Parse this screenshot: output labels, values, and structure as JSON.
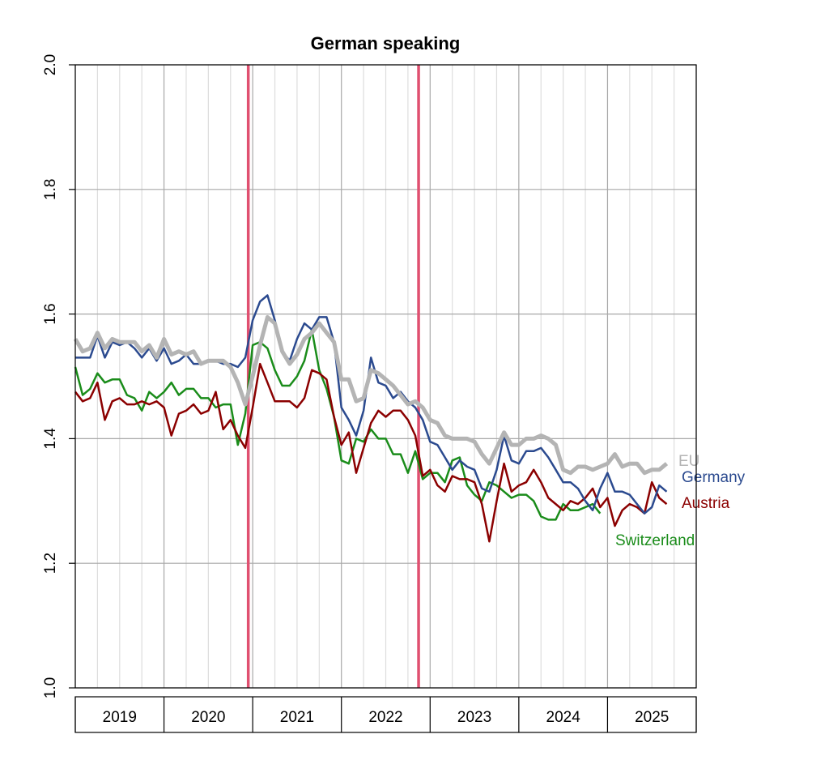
{
  "chart_data": {
    "type": "line",
    "title": "German speaking",
    "x": [
      2019,
      2019.083,
      2019.167,
      2019.25,
      2019.333,
      2019.417,
      2019.5,
      2019.583,
      2019.667,
      2019.75,
      2019.833,
      2019.917,
      2020,
      2020.083,
      2020.167,
      2020.25,
      2020.333,
      2020.417,
      2020.5,
      2020.583,
      2020.667,
      2020.75,
      2020.833,
      2020.917,
      2021,
      2021.083,
      2021.167,
      2021.25,
      2021.333,
      2021.417,
      2021.5,
      2021.583,
      2021.667,
      2021.75,
      2021.833,
      2021.917,
      2022,
      2022.083,
      2022.167,
      2022.25,
      2022.333,
      2022.417,
      2022.5,
      2022.583,
      2022.667,
      2022.75,
      2022.833,
      2022.917,
      2023,
      2023.083,
      2023.167,
      2023.25,
      2023.333,
      2023.417,
      2023.5,
      2023.583,
      2023.667,
      2023.75,
      2023.833,
      2023.917,
      2024,
      2024.083,
      2024.167,
      2024.25,
      2024.333,
      2024.417,
      2024.5,
      2024.583,
      2024.667,
      2024.75,
      2024.833,
      2024.917,
      2025,
      2025.083,
      2025.167,
      2025.25,
      2025.333,
      2025.417,
      2025.5,
      2025.583,
      2025.667
    ],
    "series": [
      {
        "name": "Switzerland",
        "color": "#1a8c1a",
        "width": 2.5,
        "values": [
          1.515,
          1.47,
          1.48,
          1.505,
          1.49,
          1.495,
          1.495,
          1.47,
          1.465,
          1.445,
          1.475,
          1.465,
          1.475,
          1.49,
          1.47,
          1.48,
          1.48,
          1.465,
          1.465,
          1.45,
          1.455,
          1.455,
          1.39,
          1.44,
          1.55,
          1.555,
          1.545,
          1.51,
          1.485,
          1.485,
          1.5,
          1.525,
          1.575,
          1.51,
          1.48,
          1.435,
          1.365,
          1.36,
          1.4,
          1.395,
          1.415,
          1.4,
          1.4,
          1.375,
          1.375,
          1.345,
          1.38,
          1.335,
          1.345,
          1.345,
          1.33,
          1.365,
          1.37,
          1.325,
          1.31,
          1.3,
          1.33,
          1.325,
          1.315,
          1.305,
          1.31,
          1.31,
          1.3,
          1.275,
          1.27,
          1.27,
          1.295,
          1.285,
          1.285,
          1.29,
          1.295,
          1.28,
          null,
          null,
          null,
          null,
          null,
          null,
          null,
          null,
          null
        ]
      },
      {
        "name": "Austria",
        "color": "#8b0000",
        "width": 2.5,
        "values": [
          1.475,
          1.46,
          1.465,
          1.49,
          1.43,
          1.46,
          1.465,
          1.455,
          1.455,
          1.46,
          1.455,
          1.46,
          1.45,
          1.405,
          1.44,
          1.445,
          1.455,
          1.44,
          1.445,
          1.475,
          1.415,
          1.43,
          1.405,
          1.385,
          1.45,
          1.52,
          1.49,
          1.46,
          1.46,
          1.46,
          1.45,
          1.465,
          1.51,
          1.505,
          1.495,
          1.435,
          1.39,
          1.41,
          1.345,
          1.385,
          1.425,
          1.445,
          1.435,
          1.445,
          1.445,
          1.43,
          1.405,
          1.34,
          1.35,
          1.325,
          1.315,
          1.34,
          1.335,
          1.335,
          1.33,
          1.295,
          1.235,
          1.3,
          1.36,
          1.315,
          1.325,
          1.33,
          1.35,
          1.33,
          1.305,
          1.295,
          1.285,
          1.3,
          1.295,
          1.305,
          1.32,
          1.29,
          1.305,
          1.26,
          1.285,
          1.295,
          1.29,
          1.28,
          1.33,
          1.305,
          1.295
        ]
      },
      {
        "name": "Germany",
        "color": "#2b4a8f",
        "width": 2.5,
        "values": [
          1.53,
          1.53,
          1.53,
          1.565,
          1.53,
          1.555,
          1.55,
          1.555,
          1.545,
          1.53,
          1.545,
          1.525,
          1.545,
          1.52,
          1.525,
          1.535,
          1.52,
          1.52,
          1.525,
          1.525,
          1.52,
          1.52,
          1.515,
          1.53,
          1.59,
          1.62,
          1.63,
          1.59,
          1.54,
          1.525,
          1.56,
          1.585,
          1.575,
          1.595,
          1.595,
          1.555,
          1.45,
          1.43,
          1.405,
          1.445,
          1.53,
          1.49,
          1.485,
          1.465,
          1.475,
          1.46,
          1.45,
          1.43,
          1.395,
          1.39,
          1.37,
          1.35,
          1.365,
          1.355,
          1.35,
          1.32,
          1.315,
          1.35,
          1.405,
          1.365,
          1.36,
          1.38,
          1.38,
          1.385,
          1.37,
          1.35,
          1.33,
          1.33,
          1.32,
          1.3,
          1.285,
          1.32,
          1.345,
          1.315,
          1.315,
          1.31,
          1.295,
          1.28,
          1.29,
          1.325,
          1.315
        ]
      },
      {
        "name": "EU",
        "color": "#b4b4b4",
        "width": 5,
        "values": [
          1.56,
          1.54,
          1.545,
          1.57,
          1.545,
          1.56,
          1.555,
          1.555,
          1.555,
          1.54,
          1.55,
          1.53,
          1.56,
          1.535,
          1.54,
          1.535,
          1.54,
          1.52,
          1.525,
          1.525,
          1.525,
          1.515,
          1.49,
          1.455,
          1.5,
          1.55,
          1.595,
          1.585,
          1.54,
          1.52,
          1.535,
          1.56,
          1.57,
          1.585,
          1.57,
          1.555,
          1.495,
          1.495,
          1.46,
          1.465,
          1.51,
          1.505,
          1.495,
          1.485,
          1.47,
          1.455,
          1.46,
          1.45,
          1.43,
          1.425,
          1.405,
          1.4,
          1.4,
          1.4,
          1.395,
          1.375,
          1.36,
          1.385,
          1.41,
          1.39,
          1.39,
          1.4,
          1.4,
          1.405,
          1.4,
          1.39,
          1.35,
          1.345,
          1.355,
          1.355,
          1.35,
          1.355,
          1.36,
          1.375,
          1.355,
          1.36,
          1.36,
          1.345,
          1.35,
          1.35,
          1.36
        ]
      }
    ],
    "xlim": [
      2019,
      2026
    ],
    "xticks": [
      2019,
      2020,
      2021,
      2022,
      2023,
      2024,
      2025,
      2026
    ],
    "xminorticks": [
      2019.25,
      2019.5,
      2019.75,
      2020.25,
      2020.5,
      2020.75,
      2021.25,
      2021.5,
      2021.75,
      2022.25,
      2022.5,
      2022.75,
      2023.25,
      2023.5,
      2023.75,
      2024.25,
      2024.5,
      2024.75,
      2025.25,
      2025.5,
      2025.75
    ],
    "year_labels": [
      "2019",
      "2020",
      "2021",
      "2022",
      "2023",
      "2024",
      "2025"
    ],
    "ylim": [
      1,
      2
    ],
    "yticks": [
      {
        "value": 1,
        "label": "1.0"
      },
      {
        "value": 1.2,
        "label": "1.2"
      },
      {
        "value": 1.4,
        "label": "1.4"
      },
      {
        "value": 1.6,
        "label": "1.6"
      },
      {
        "value": 1.8,
        "label": "1.8"
      },
      {
        "value": 2,
        "label": "2.0"
      }
    ],
    "event_lines": [
      2020.95,
      2022.87
    ],
    "event_color": "#e05070",
    "grid": true
  }
}
